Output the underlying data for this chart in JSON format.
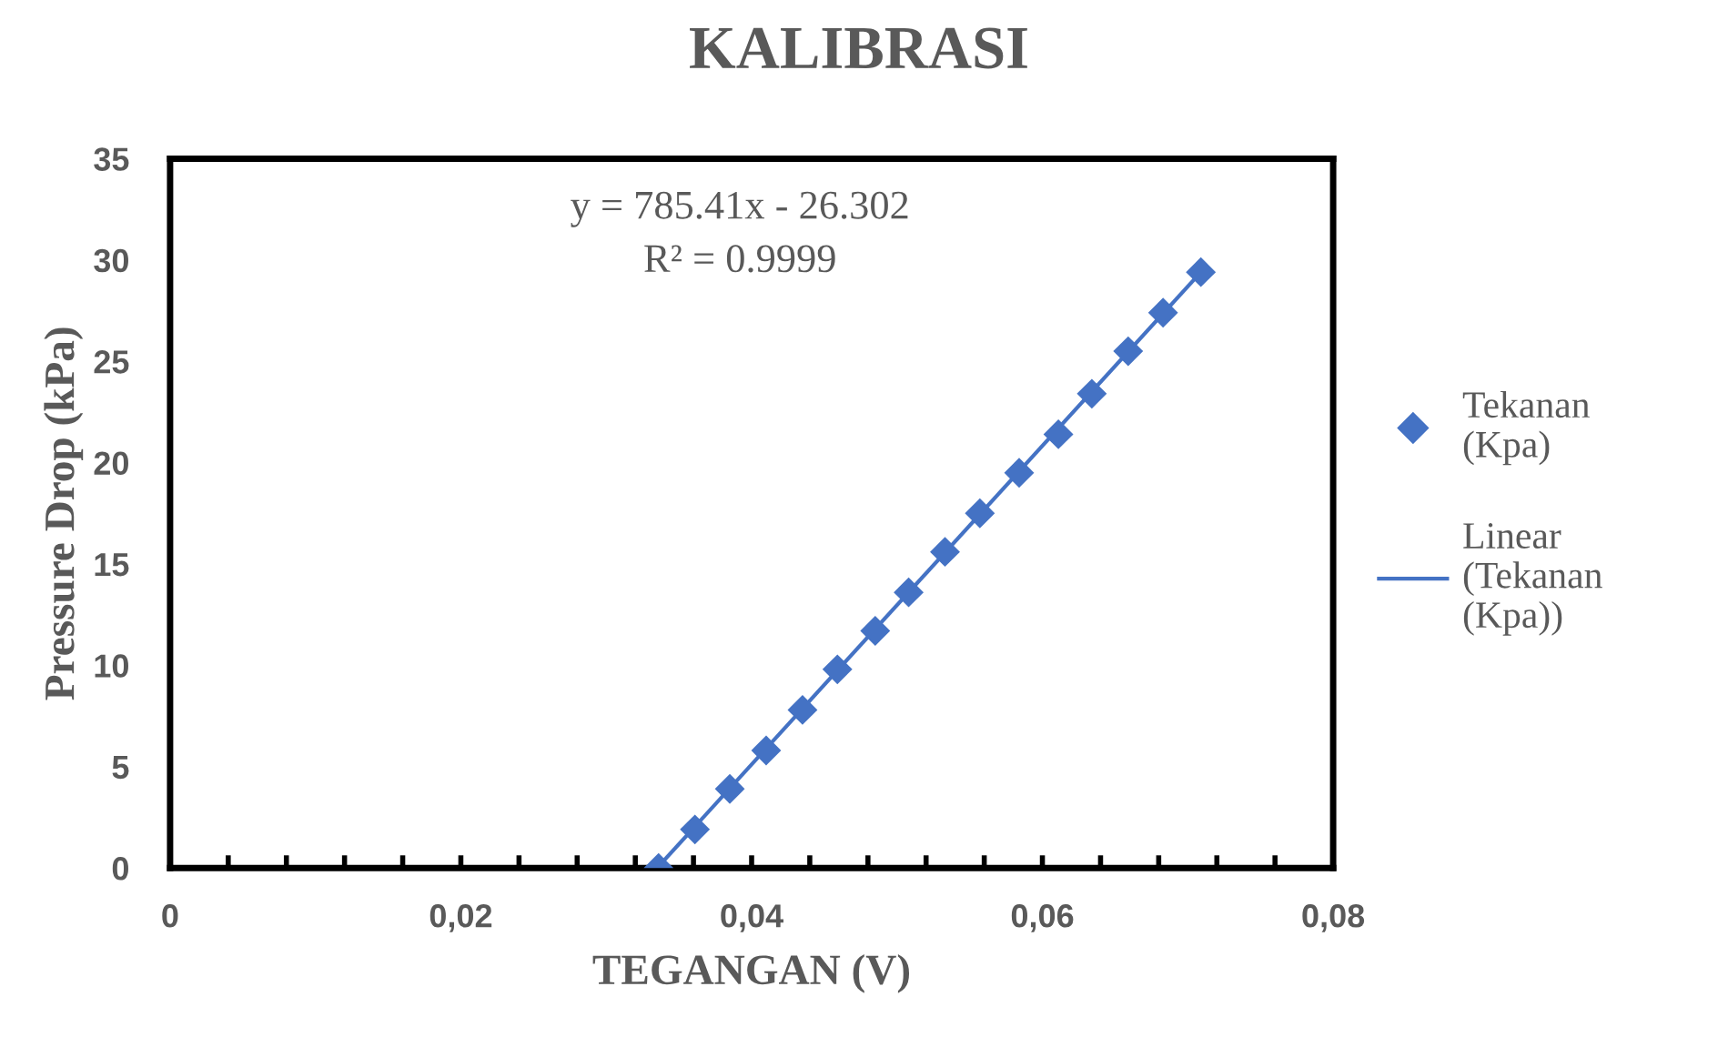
{
  "chart_data": {
    "type": "scatter",
    "title": "KALIBRASI",
    "xlabel": "TEGANGAN (V)",
    "ylabel": "Pressure Drop (kPa)",
    "annotations": [
      "y = 785.41x - 26.302",
      "R² = 0.9999"
    ],
    "x": [
      0.0336,
      0.0361,
      0.0385,
      0.041,
      0.0435,
      0.0459,
      0.0485,
      0.0508,
      0.0533,
      0.0557,
      0.0584,
      0.0611,
      0.0634,
      0.0659,
      0.0683,
      0.0709
    ],
    "series": [
      {
        "name": "Tekanan (Kpa)",
        "color": "#4472c4",
        "marker": "diamond",
        "values": [
          0,
          1.9,
          3.9,
          5.8,
          7.8,
          9.8,
          11.7,
          13.6,
          15.6,
          17.5,
          19.5,
          21.4,
          23.4,
          25.5,
          27.4,
          29.4
        ]
      },
      {
        "name": "Linear (Tekanan (Kpa))",
        "type": "line",
        "color": "#4472c4",
        "marker": "none",
        "line_style": "solid",
        "x": [
          0.0335,
          0.0709
        ],
        "values": [
          0,
          29.4
        ]
      }
    ],
    "xlim": [
      0,
      0.08
    ],
    "ylim": [
      0,
      35
    ],
    "xticks": [
      0,
      {
        "value": 0.004,
        "label": null
      },
      {
        "value": 0.008,
        "label": null
      },
      {
        "value": 0.012,
        "label": null
      },
      {
        "value": 0.016,
        "label": null
      },
      {
        "value": 0.02,
        "label": "0,02"
      },
      {
        "value": 0.024,
        "label": null
      },
      {
        "value": 0.028,
        "label": null
      },
      {
        "value": 0.032,
        "label": null
      },
      {
        "value": 0.036,
        "label": null
      },
      {
        "value": 0.04,
        "label": "0,04"
      },
      {
        "value": 0.044,
        "label": null
      },
      {
        "value": 0.048,
        "label": null
      },
      {
        "value": 0.052,
        "label": null
      },
      {
        "value": 0.056,
        "label": null
      },
      {
        "value": 0.06,
        "label": "0,06"
      },
      {
        "value": 0.064,
        "label": null
      },
      {
        "value": 0.068,
        "label": null
      },
      {
        "value": 0.072,
        "label": null
      },
      {
        "value": 0.076,
        "label": null
      },
      {
        "value": 0.08,
        "label": "0,08"
      }
    ],
    "yticks": [
      0,
      5,
      10,
      15,
      20,
      25,
      30,
      35
    ],
    "grid": false,
    "legend": "right"
  }
}
